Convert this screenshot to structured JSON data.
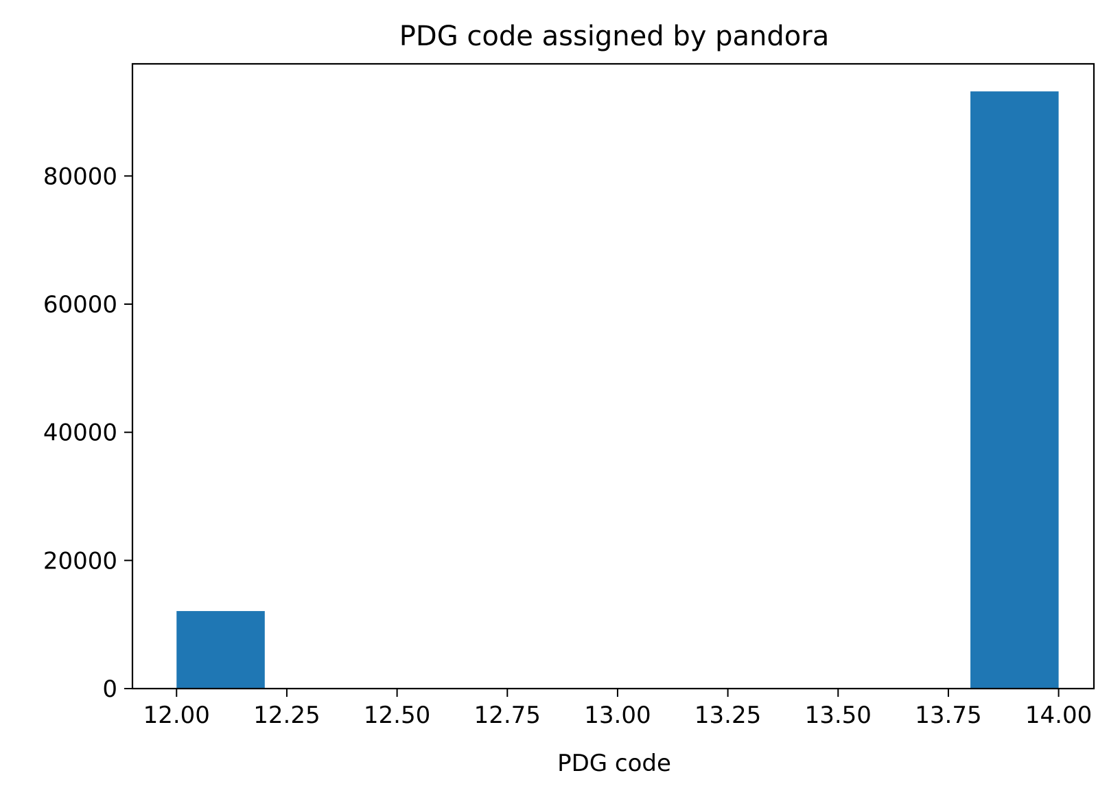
{
  "chart_data": {
    "type": "bar",
    "title": "PDG code assigned by pandora",
    "xlabel": "PDG code",
    "ylabel": "",
    "xlim": [
      11.9,
      14.08
    ],
    "ylim": [
      0,
      97500
    ],
    "x_ticks": [
      12.0,
      12.25,
      12.5,
      12.75,
      13.0,
      13.25,
      13.5,
      13.75,
      14.0
    ],
    "x_tick_labels": [
      "12.00",
      "12.25",
      "12.50",
      "12.75",
      "13.00",
      "13.25",
      "13.50",
      "13.75",
      "14.00"
    ],
    "y_ticks": [
      0,
      20000,
      40000,
      60000,
      80000
    ],
    "y_tick_labels": [
      "0",
      "20000",
      "40000",
      "60000",
      "80000"
    ],
    "bins": [
      {
        "x0": 12.0,
        "x1": 12.2,
        "value": 12100
      },
      {
        "x0": 13.8,
        "x1": 14.0,
        "value": 93200
      }
    ],
    "bar_color": "#1f77b4",
    "grid": false
  }
}
